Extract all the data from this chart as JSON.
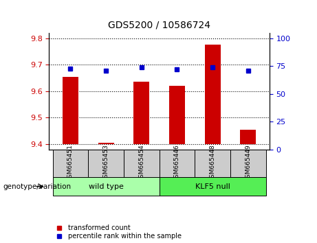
{
  "title": "GDS5200 / 10586724",
  "samples": [
    "GSM665451",
    "GSM665453",
    "GSM665454",
    "GSM665446",
    "GSM665448",
    "GSM665449"
  ],
  "transformed_counts": [
    9.655,
    9.405,
    9.635,
    9.62,
    9.775,
    9.455
  ],
  "percentile_ranks": [
    73,
    71,
    74,
    72,
    74,
    71
  ],
  "ylim_left": [
    9.38,
    9.82
  ],
  "ylim_right": [
    0,
    105
  ],
  "yticks_left": [
    9.4,
    9.5,
    9.6,
    9.7,
    9.8
  ],
  "yticks_right": [
    0,
    25,
    50,
    75,
    100
  ],
  "bar_color": "#cc0000",
  "marker_color": "#0000cc",
  "bar_bottom": 9.4,
  "groups": [
    {
      "label": "wild type",
      "indices": [
        0,
        1,
        2
      ],
      "color": "#aaffaa"
    },
    {
      "label": "KLF5 null",
      "indices": [
        3,
        4,
        5
      ],
      "color": "#55ee55"
    }
  ],
  "genotype_label": "genotype/variation",
  "legend_items": [
    {
      "label": "transformed count",
      "color": "#cc0000"
    },
    {
      "label": "percentile rank within the sample",
      "color": "#0000cc"
    }
  ],
  "tick_color_left": "#cc0000",
  "tick_color_right": "#0000cc",
  "background_xticklabel": "#cccccc",
  "title_fontsize": 10,
  "label_fontsize": 6.5,
  "group_fontsize": 8,
  "genotype_fontsize": 7.5
}
